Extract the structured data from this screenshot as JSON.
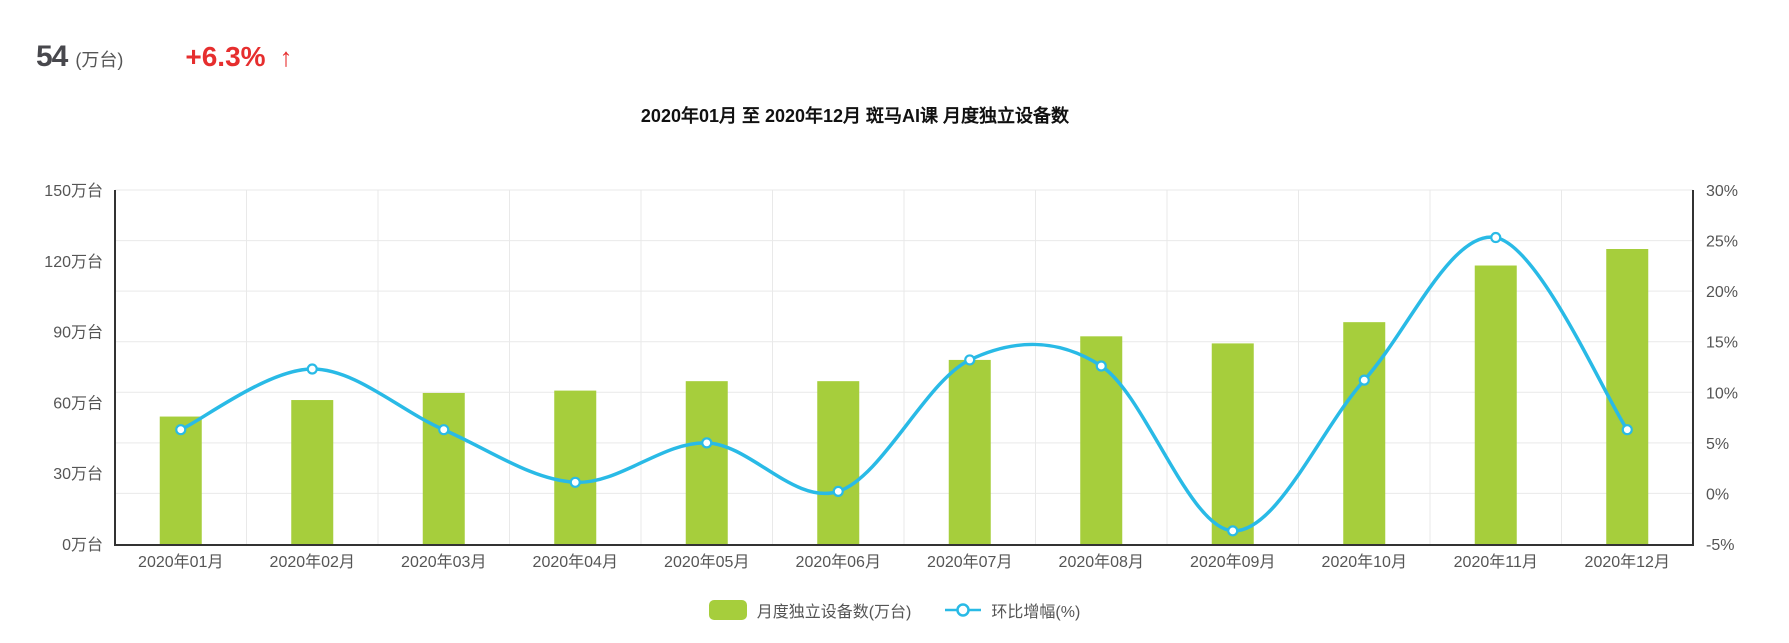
{
  "header": {
    "value": "54",
    "unit": "(万台)",
    "change": "+6.3%",
    "arrow": "↑",
    "change_color": "#e62e2e",
    "value_color": "#48484d"
  },
  "title": "2020年01月 至 2020年12月 斑马AI课 月度独立设备数",
  "chart_data": {
    "type": "bar",
    "title": "2020年01月 至 2020年12月 斑马AI课 月度独立设备数",
    "categories": [
      "2020年01月",
      "2020年02月",
      "2020年03月",
      "2020年04月",
      "2020年05月",
      "2020年06月",
      "2020年07月",
      "2020年08月",
      "2020年09月",
      "2020年10月",
      "2020年11月",
      "2020年12月"
    ],
    "series": [
      {
        "name": "月度独立设备数(万台)",
        "type": "bar",
        "axis": "left",
        "color": "#a6ce3c",
        "values": [
          54,
          61,
          64,
          65,
          69,
          69,
          78,
          88,
          85,
          94,
          118,
          125
        ]
      },
      {
        "name": "环比增幅(%)",
        "type": "line",
        "axis": "right",
        "color": "#29bae6",
        "smooth": true,
        "marker": "empty-circle",
        "values": [
          6.3,
          12.3,
          6.3,
          1.1,
          5.0,
          0.2,
          13.2,
          12.6,
          -3.7,
          11.2,
          25.3,
          6.3
        ]
      }
    ],
    "left_axis": {
      "label_suffix": "万台",
      "min": 0,
      "max": 150,
      "ticks": [
        "0万台",
        "30万台",
        "60万台",
        "90万台",
        "120万台",
        "150万台"
      ]
    },
    "right_axis": {
      "label_suffix": "%",
      "min": -5,
      "max": 30,
      "ticks": [
        "-5%",
        "0%",
        "5%",
        "10%",
        "15%",
        "20%",
        "25%",
        "30%"
      ]
    },
    "grid": true,
    "legend_position": "bottom",
    "grid_color": "#e9e9e9",
    "axis_line_color": "#333333",
    "tick_label_color": "#555555"
  },
  "legend": {
    "items": [
      {
        "label": "月度独立设备数(万台)",
        "color": "#a6ce3c",
        "type": "bar"
      },
      {
        "label": "环比增幅(%)",
        "color": "#29bae6",
        "type": "line"
      }
    ]
  }
}
